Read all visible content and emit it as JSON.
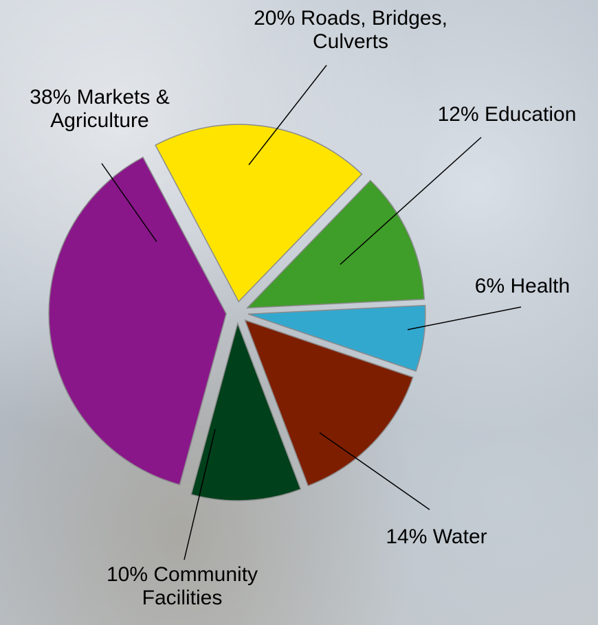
{
  "chart_data": {
    "type": "pie",
    "categories": [
      "Roads, Bridges, Culverts",
      "Education",
      "Health",
      "Water",
      "Community Facilities",
      "Markets & Agriculture"
    ],
    "values": [
      20,
      12,
      6,
      14,
      10,
      38
    ],
    "value_labels": [
      "20%",
      "12%",
      "6%",
      "14%",
      "10%",
      "38%"
    ],
    "colors": [
      "#ffe400",
      "#3f9d29",
      "#33a8cf",
      "#7e1e00",
      "#00401b",
      "#8a178a"
    ]
  }
}
